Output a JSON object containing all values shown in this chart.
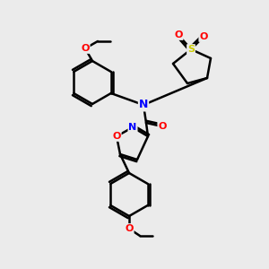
{
  "bg_color": "#ebebeb",
  "bond_color": "#000000",
  "bond_width": 1.8,
  "atom_colors": {
    "N": "#0000ff",
    "O": "#ff0000",
    "S": "#cccc00",
    "C": "#000000"
  },
  "font_size": 8,
  "fig_size": [
    3.0,
    3.0
  ],
  "dpi": 100
}
